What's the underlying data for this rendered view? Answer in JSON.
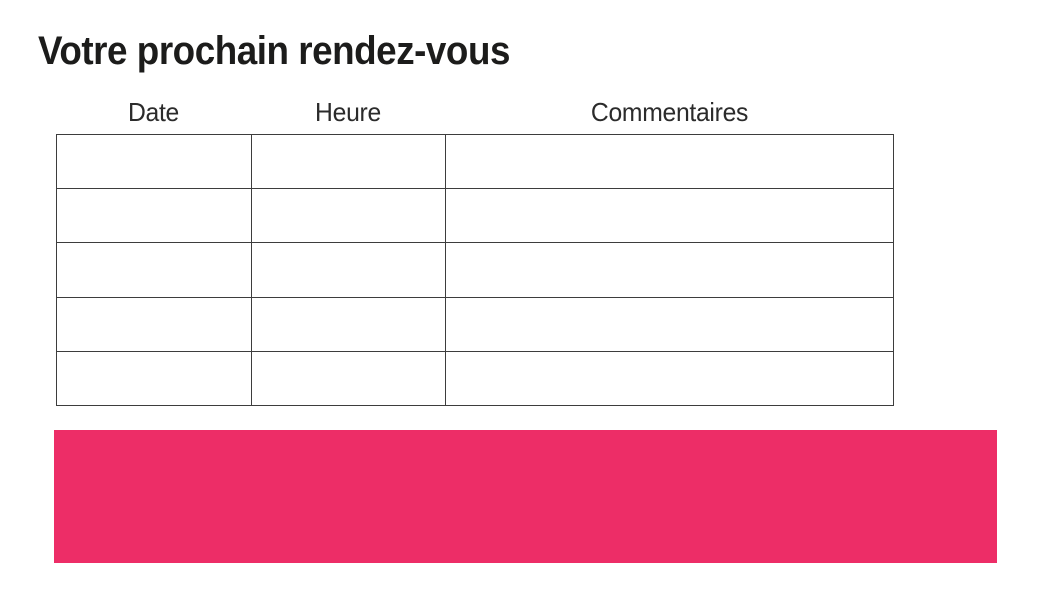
{
  "page": {
    "title": "Votre prochain rendez-vous",
    "accent_color": "#ED2D67"
  },
  "table": {
    "columns": [
      "Date",
      "Heure",
      "Commentaires"
    ],
    "rows": [
      {
        "date": "",
        "heure": "",
        "commentaires": ""
      },
      {
        "date": "",
        "heure": "",
        "commentaires": ""
      },
      {
        "date": "",
        "heure": "",
        "commentaires": ""
      },
      {
        "date": "",
        "heure": "",
        "commentaires": ""
      },
      {
        "date": "",
        "heure": "",
        "commentaires": ""
      }
    ]
  }
}
